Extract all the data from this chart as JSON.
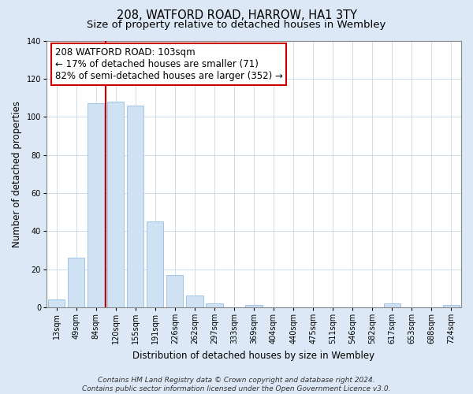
{
  "title": "208, WATFORD ROAD, HARROW, HA1 3TY",
  "subtitle": "Size of property relative to detached houses in Wembley",
  "xlabel": "Distribution of detached houses by size in Wembley",
  "ylabel": "Number of detached properties",
  "bin_labels": [
    "13sqm",
    "49sqm",
    "84sqm",
    "120sqm",
    "155sqm",
    "191sqm",
    "226sqm",
    "262sqm",
    "297sqm",
    "333sqm",
    "369sqm",
    "404sqm",
    "440sqm",
    "475sqm",
    "511sqm",
    "546sqm",
    "582sqm",
    "617sqm",
    "653sqm",
    "688sqm",
    "724sqm"
  ],
  "bar_heights": [
    4,
    26,
    107,
    108,
    106,
    45,
    17,
    6,
    2,
    0,
    1,
    0,
    0,
    0,
    0,
    0,
    0,
    2,
    0,
    0,
    1
  ],
  "bar_color": "#cfe2f3",
  "bar_edgecolor": "#9fc5e8",
  "vline_color": "#cc0000",
  "annotation_line1": "208 WATFORD ROAD: 103sqm",
  "annotation_line2": "← 17% of detached houses are smaller (71)",
  "annotation_line3": "82% of semi-detached houses are larger (352) →",
  "annotation_box_edgecolor": "#cc0000",
  "annotation_box_facecolor": "#ffffff",
  "ylim": [
    0,
    140
  ],
  "yticks": [
    0,
    20,
    40,
    60,
    80,
    100,
    120,
    140
  ],
  "footnote": "Contains HM Land Registry data © Crown copyright and database right 2024.\nContains public sector information licensed under the Open Government Licence v3.0.",
  "background_color": "#dce8f5",
  "plot_background": "#ffffff",
  "title_fontsize": 10.5,
  "subtitle_fontsize": 9.5,
  "axis_label_fontsize": 8.5,
  "tick_fontsize": 7,
  "annotation_fontsize": 8.5,
  "footnote_fontsize": 6.5
}
